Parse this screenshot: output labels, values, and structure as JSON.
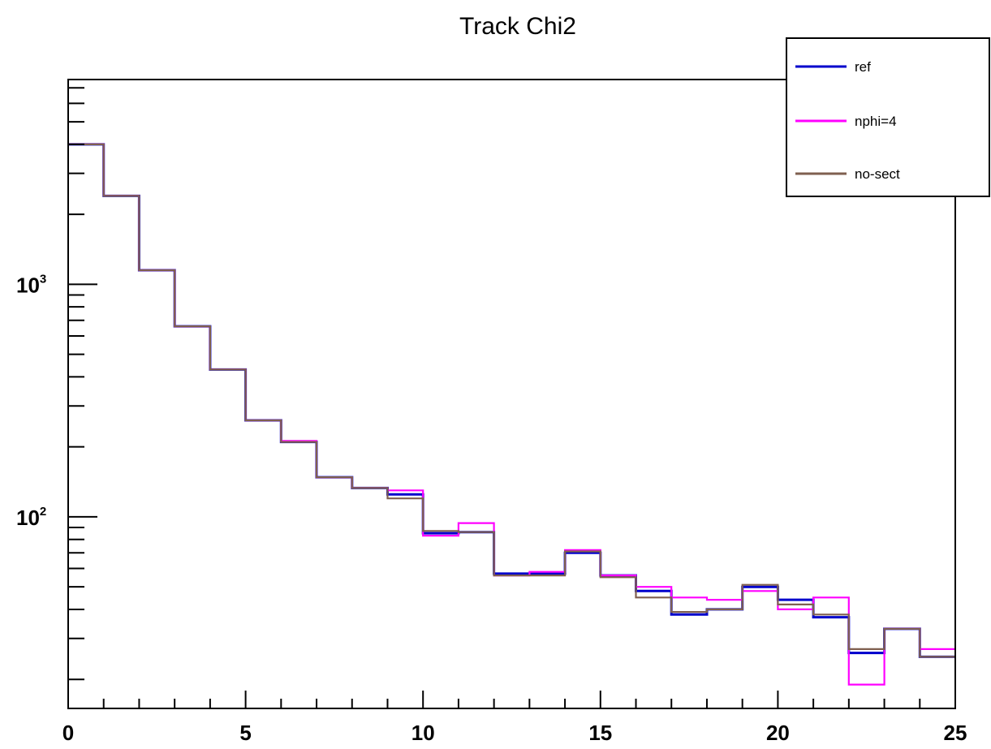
{
  "chart_data": {
    "type": "line",
    "style": "step-histogram",
    "title": "Track Chi2",
    "xlabel": "",
    "ylabel": "",
    "xlim": [
      0,
      25
    ],
    "ylim": [
      15,
      7600
    ],
    "yscale": "log",
    "grid": false,
    "legend_position": "top-right",
    "x_ticks": [
      0,
      5,
      10,
      15,
      20,
      25
    ],
    "y_ticks": [
      {
        "base": "10",
        "exp": "2",
        "value": 100
      },
      {
        "base": "10",
        "exp": "3",
        "value": 1000
      }
    ],
    "bin_edges": [
      0,
      1,
      2,
      3,
      4,
      5,
      6,
      7,
      8,
      9,
      10,
      11,
      12,
      13,
      14,
      15,
      16,
      17,
      18,
      19,
      20,
      21,
      22,
      23,
      24,
      25
    ],
    "series": [
      {
        "name": "ref",
        "color": "#0000cc",
        "values": [
          4000,
          2400,
          1150,
          660,
          430,
          260,
          210,
          148,
          133,
          125,
          85,
          86,
          57,
          57,
          70,
          56,
          48,
          38,
          40,
          50,
          44,
          37,
          26,
          33,
          25
        ]
      },
      {
        "name": "nphi=4",
        "color": "#ff00ff",
        "values": [
          4000,
          2400,
          1150,
          660,
          430,
          260,
          212,
          148,
          133,
          130,
          83,
          94,
          56,
          58,
          72,
          56,
          50,
          45,
          44,
          48,
          40,
          45,
          19,
          33,
          27
        ]
      },
      {
        "name": "no-sect",
        "color": "#7f5f4f",
        "values": [
          4000,
          2400,
          1150,
          660,
          430,
          260,
          210,
          148,
          133,
          120,
          87,
          86,
          56,
          56,
          71,
          55,
          45,
          39,
          40,
          51,
          42,
          38,
          27,
          33,
          25
        ]
      }
    ]
  }
}
